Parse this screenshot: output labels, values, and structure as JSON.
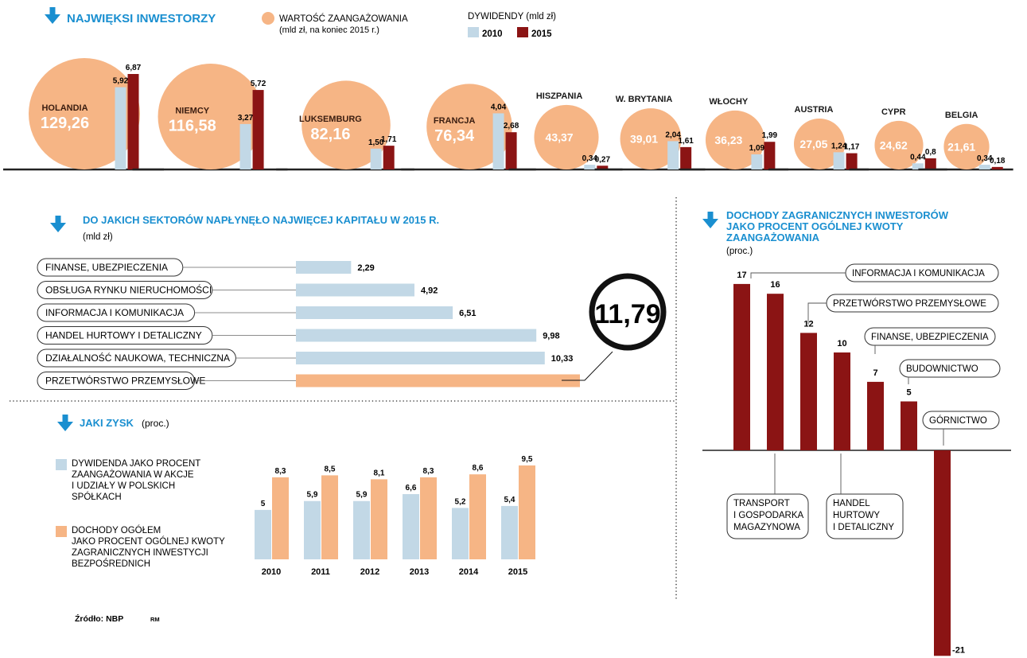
{
  "colors": {
    "heading_blue": "#1a8fd0",
    "arrow_blue": "#1a8fd0",
    "circle_fill": "#f6b585",
    "bar_2010": "#c2d8e6",
    "bar_2015": "#8b1414",
    "sector_bar": "#c2d8e6",
    "sector_highlight": "#f6b585",
    "income_bar": "#8b1414",
    "text_dark": "#1a1a1a"
  },
  "investors": {
    "title": "NAJWIĘKSI INWESTORZY",
    "legend_circle_label": "WARTOŚĆ ZAANGAŻOWANIA",
    "legend_circle_sub": "(mld zł, na koniec 2015 r.)",
    "legend_div_label": "DYWIDENDY",
    "legend_div_unit": "(mld zł)",
    "legend_2010": "2010",
    "legend_2015": "2015"
  },
  "sectors": {
    "title": "DO JAKICH SEKTORÓW NAPŁYNĘŁO NAJWIĘCEJ  KAPITAŁU W 2015 R.",
    "unit": "(mld zł)",
    "highlight_value": "11,79"
  },
  "profit": {
    "title": "JAKI ZYSK",
    "unit": "(proc.)",
    "legend_a": [
      "DYWIDENDA JAKO PROCENT",
      "ZAANGAŻOWANIA W AKCJE",
      "I UDZIAŁY W POLSKICH",
      "SPÓŁKACH"
    ],
    "legend_b": [
      "DOCHODY OGÓŁEM",
      "JAKO PROCENT OGÓLNEJ KWOTY",
      "ZAGRANICZNYCH INWESTYCJI",
      "BEZPOŚREDNICH"
    ]
  },
  "income": {
    "title": [
      "DOCHODY ZAGRANICZNYCH INWESTORÓW",
      "JAKO PROCENT OGÓLNEJ KWOTY",
      "ZAANGAŻOWANIA"
    ],
    "unit": "(proc.)"
  },
  "footer": {
    "source": "Źródło: NBP",
    "author": "RM"
  },
  "chart_data": [
    {
      "type": "bar",
      "title": "NAJWIĘKSI INWESTORZY",
      "categories": [
        "HOLANDIA",
        "NIEMCY",
        "LUKSEMBURG",
        "FRANCJA",
        "HISZPANIA",
        "W. BRYTANIA",
        "WŁOCHY",
        "AUSTRIA",
        "CYPR",
        "BELGIA"
      ],
      "circle_values": [
        129.26,
        116.58,
        82.16,
        76.34,
        43.37,
        39.01,
        36.23,
        27.05,
        24.62,
        21.61
      ],
      "circle_labels": [
        "129,26",
        "116,58",
        "82,16",
        "76,34",
        "43,37",
        "39,01",
        "36,23",
        "27,05",
        "24,62",
        "21,61"
      ],
      "series": [
        {
          "name": "2010",
          "values": [
            5.92,
            3.27,
            1.5,
            4.04,
            0.34,
            2.04,
            1.09,
            1.24,
            0.44,
            0.34
          ],
          "labels": [
            "5,92",
            "3,27",
            "1,50",
            "4,04",
            "0,34",
            "2,04",
            "1,09",
            "1,24",
            "0,44",
            "0,34"
          ]
        },
        {
          "name": "2015",
          "values": [
            6.87,
            5.72,
            1.71,
            2.68,
            0.27,
            1.61,
            1.99,
            1.17,
            0.8,
            0.18
          ],
          "labels": [
            "6,87",
            "5,72",
            "1,71",
            "2,68",
            "0,27",
            "1,61",
            "1,99",
            "1,17",
            "0,8",
            "0,18"
          ]
        }
      ]
    },
    {
      "type": "bar",
      "title": "DO JAKICH SEKTORÓW NAPŁYNĘŁO NAJWIĘCEJ  KAPITAŁU W 2015 R.",
      "categories": [
        "FINANSE, UBEZPIECZENIA",
        "OBSŁUGA RYNKU NIERUCHOMOŚCI",
        "INFORMACJA I KOMUNIKACJA",
        "HANDEL HURTOWY I DETALICZNY",
        "DZIAŁALNOŚĆ NAUKOWA, TECHNICZNA",
        "PRZETWÓRSTWO PRZEMYSŁOWE"
      ],
      "values": [
        2.29,
        4.92,
        6.51,
        9.98,
        10.33,
        11.79
      ],
      "labels": [
        "2,29",
        "4,92",
        "6,51",
        "9,98",
        "10,33",
        "11,79"
      ]
    },
    {
      "type": "bar",
      "title": "JAKI ZYSK",
      "categories": [
        "2010",
        "2011",
        "2012",
        "2013",
        "2014",
        "2015"
      ],
      "series": [
        {
          "values": [
            5,
            5.9,
            5.9,
            6.6,
            5.2,
            5.4
          ],
          "labels": [
            "5",
            "5,9",
            "5,9",
            "6,6",
            "5,2",
            "5,4"
          ]
        },
        {
          "values": [
            8.3,
            8.5,
            8.1,
            8.3,
            8.6,
            9.5
          ],
          "labels": [
            "8,3",
            "8,5",
            "8,1",
            "8,3",
            "8,6",
            "9,5"
          ]
        }
      ]
    },
    {
      "type": "bar",
      "title": "DOCHODY ZAGRANICZNYCH INWESTORÓW JAKO PROCENT OGÓLNEJ KWOTY ZAANGAŻOWANIA",
      "categories": [
        "INFORMACJA I KOMUNIKACJA",
        "TRANSPORT I GOSPODARKA MAGAZYNOWA",
        "PRZETWÓRSTWO PRZEMYSŁOWE",
        "HANDEL HURTOWY I DETALICZNY",
        "FINANSE, UBEZPIECZENIA",
        "BUDOWNICTWO",
        "GÓRNICTWO"
      ],
      "category_lines": [
        [
          "INFORMACJA I KOMUNIKACJA"
        ],
        [
          "TRANSPORT",
          "I GOSPODARKA",
          "MAGAZYNOWA"
        ],
        [
          "PRZETWÓRSTWO PRZEMYSŁOWE"
        ],
        [
          "HANDEL",
          "HURTOWY",
          "I DETALICZNY"
        ],
        [
          "FINANSE, UBEZPIECZENIA"
        ],
        [
          "BUDOWNICTWO"
        ],
        [
          "GÓRNICTWO"
        ]
      ],
      "values": [
        17,
        16,
        12,
        10,
        7,
        5,
        -21
      ],
      "labels": [
        "17",
        "16",
        "12",
        "10",
        "7",
        "5",
        "-21"
      ]
    }
  ]
}
